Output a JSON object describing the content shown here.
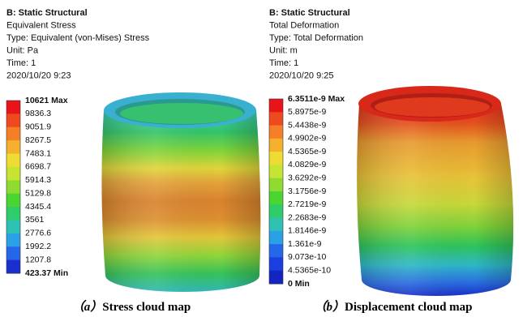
{
  "panels": [
    {
      "header": [
        "B: Static Structural",
        "Equivalent Stress",
        "Type: Equivalent (von-Mises) Stress",
        "Unit: Pa",
        "Time: 1",
        "2020/10/20 9:23"
      ],
      "legend": [
        "10621 Max",
        "9836.3",
        "9051.9",
        "8267.5",
        "7483.1",
        "6698.7",
        "5914.3",
        "5129.8",
        "4345.4",
        "3561",
        "2776.6",
        "1992.2",
        "1207.8",
        "423.37 Min"
      ],
      "caption": {
        "label": "（a）",
        "text": "Stress cloud map"
      }
    },
    {
      "header": [
        "B: Static Structural",
        "Total Deformation",
        "Type: Total Deformation",
        "Unit: m",
        "Time: 1",
        "2020/10/20 9:25"
      ],
      "legend": [
        "6.3511e-9 Max",
        "5.8975e-9",
        "5.4438e-9",
        "4.9902e-9",
        "4.5365e-9",
        "4.0829e-9",
        "3.6292e-9",
        "3.1756e-9",
        "2.7219e-9",
        "2.2683e-9",
        "1.8146e-9",
        "1.361e-9",
        "9.073e-10",
        "4.5365e-10",
        "0 Min"
      ],
      "caption": {
        "label": "（b）",
        "text": "Displacement cloud map"
      }
    }
  ]
}
